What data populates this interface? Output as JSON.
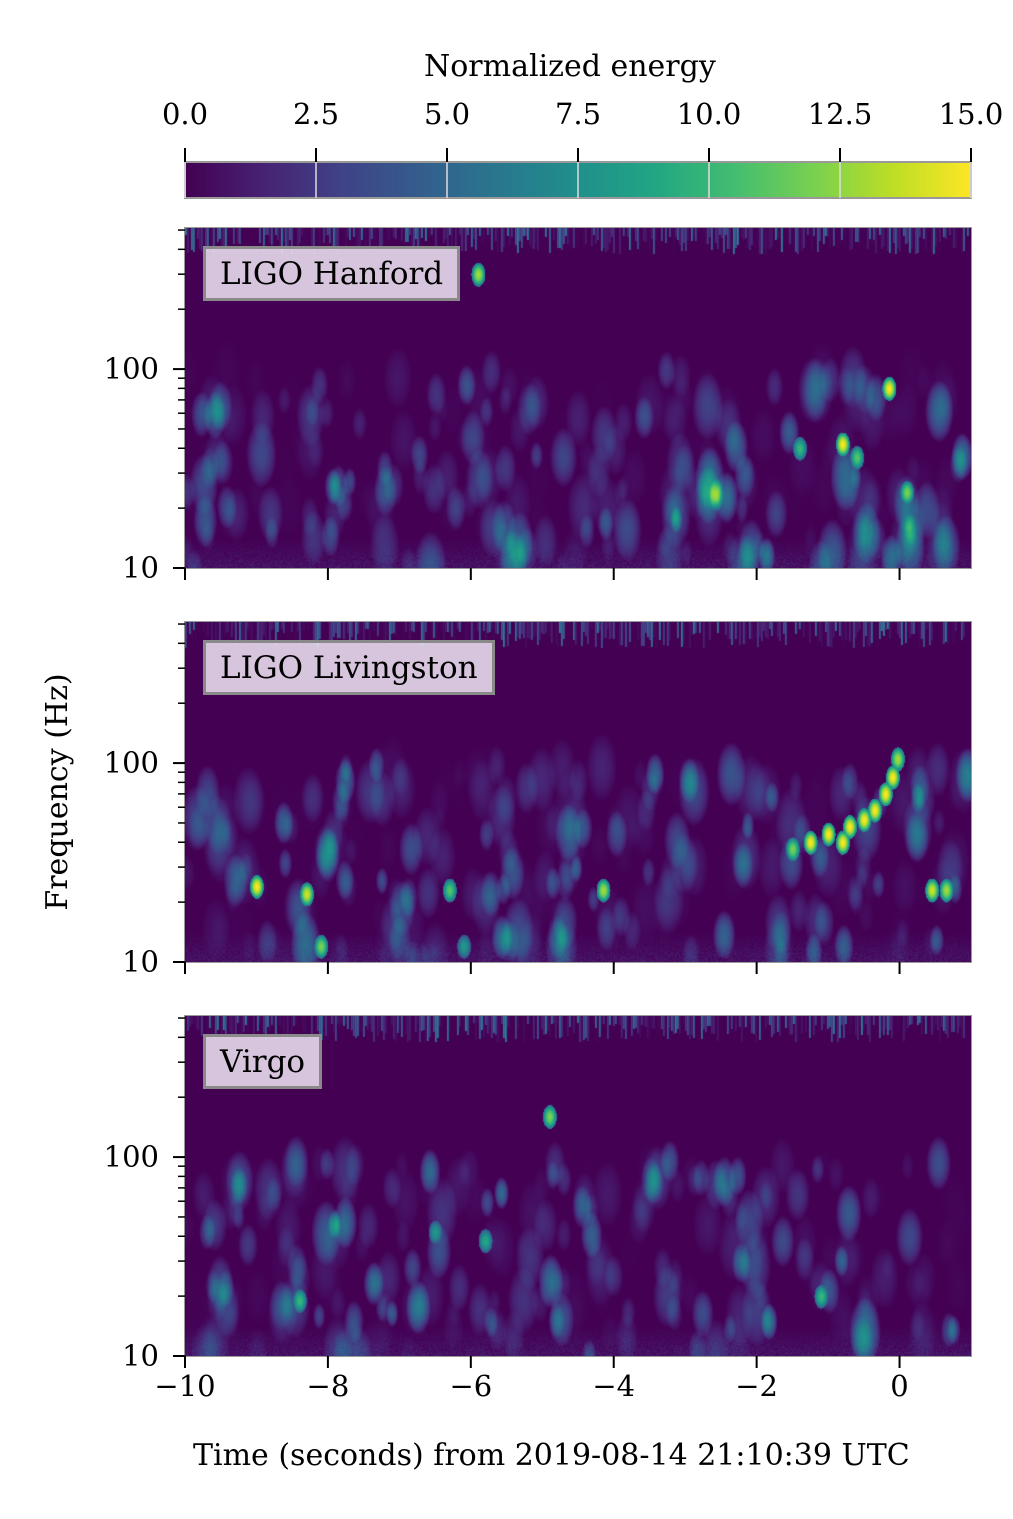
{
  "chart_data": {
    "type": "heatmap",
    "colorbar": {
      "label": "Normalized energy",
      "range": [
        0,
        15
      ],
      "ticks": [
        "0.0",
        "2.5",
        "5.0",
        "7.5",
        "10.0",
        "12.5",
        "15.0"
      ],
      "colormap": "viridis"
    },
    "xlabel": "Time (seconds) from 2019-08-14 21:10:39 UTC",
    "ylabel": "Frequency (Hz)",
    "xlim": [
      -10,
      1
    ],
    "ylim": [
      10,
      512
    ],
    "yscale": "log",
    "x_ticks": [
      "−10",
      "−8",
      "−6",
      "−4",
      "−2",
      "0"
    ],
    "x_tick_values": [
      -10,
      -8,
      -6,
      -4,
      -2,
      0
    ],
    "y_ticks": [
      "10",
      "100"
    ],
    "y_tick_values": [
      10,
      100
    ],
    "grid": true,
    "panels": [
      {
        "name": "LIGO Hanford",
        "features": [
          [
            -0.8,
            42,
            15
          ],
          [
            -0.6,
            36,
            11
          ],
          [
            -0.15,
            80,
            15
          ],
          [
            -1.4,
            40,
            10
          ],
          [
            0.1,
            24,
            12
          ],
          [
            -5.9,
            300,
            13
          ]
        ]
      },
      {
        "name": "LIGO Livingston",
        "features": [
          [
            -1.5,
            37,
            12
          ],
          [
            -1.25,
            40,
            15
          ],
          [
            -1.0,
            44,
            15
          ],
          [
            -0.8,
            40,
            15
          ],
          [
            -0.7,
            48,
            15
          ],
          [
            -0.5,
            52,
            15
          ],
          [
            -0.35,
            58,
            15
          ],
          [
            -0.2,
            70,
            15
          ],
          [
            -0.1,
            85,
            15
          ],
          [
            -0.03,
            105,
            13
          ],
          [
            -9.0,
            24,
            15
          ],
          [
            -8.3,
            22,
            14
          ],
          [
            -6.3,
            23,
            11
          ],
          [
            -4.15,
            23,
            13
          ],
          [
            -8.1,
            12,
            12
          ],
          [
            0.45,
            23,
            14
          ],
          [
            0.65,
            23,
            13
          ],
          [
            -6.1,
            12,
            8
          ]
        ]
      },
      {
        "name": "Virgo",
        "features": [
          [
            -1.1,
            20,
            10
          ],
          [
            -8.4,
            19,
            10
          ],
          [
            -5.8,
            38,
            9
          ],
          [
            -6.5,
            42,
            8
          ],
          [
            -4.9,
            160,
            12
          ]
        ]
      }
    ]
  }
}
